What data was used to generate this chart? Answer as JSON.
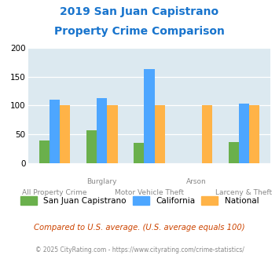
{
  "title_line1": "2019 San Juan Capistrano",
  "title_line2": "Property Crime Comparison",
  "title_color": "#1874CD",
  "sjc_values": [
    40,
    57,
    35,
    0,
    37
  ],
  "ca_values": [
    110,
    113,
    163,
    0,
    103
  ],
  "national_values": [
    100,
    100,
    100,
    100,
    100
  ],
  "sjc_color": "#6ab04c",
  "ca_color": "#4da6ff",
  "national_color": "#ffb347",
  "bg_color": "#dce9f0",
  "ylim": [
    0,
    200
  ],
  "yticks": [
    0,
    50,
    100,
    150,
    200
  ],
  "legend_labels": [
    "San Juan Capistrano",
    "California",
    "National"
  ],
  "footnote1": "Compared to U.S. average. (U.S. average equals 100)",
  "footnote2": "© 2025 CityRating.com - https://www.cityrating.com/crime-statistics/",
  "footnote1_color": "#cc4400",
  "footnote2_color": "#888888",
  "row1_labels": {
    "1": "Burglary",
    "3": "Arson"
  },
  "row2_labels": {
    "0": "All Property Crime",
    "2": "Motor Vehicle Theft",
    "4": "Larceny & Theft"
  }
}
